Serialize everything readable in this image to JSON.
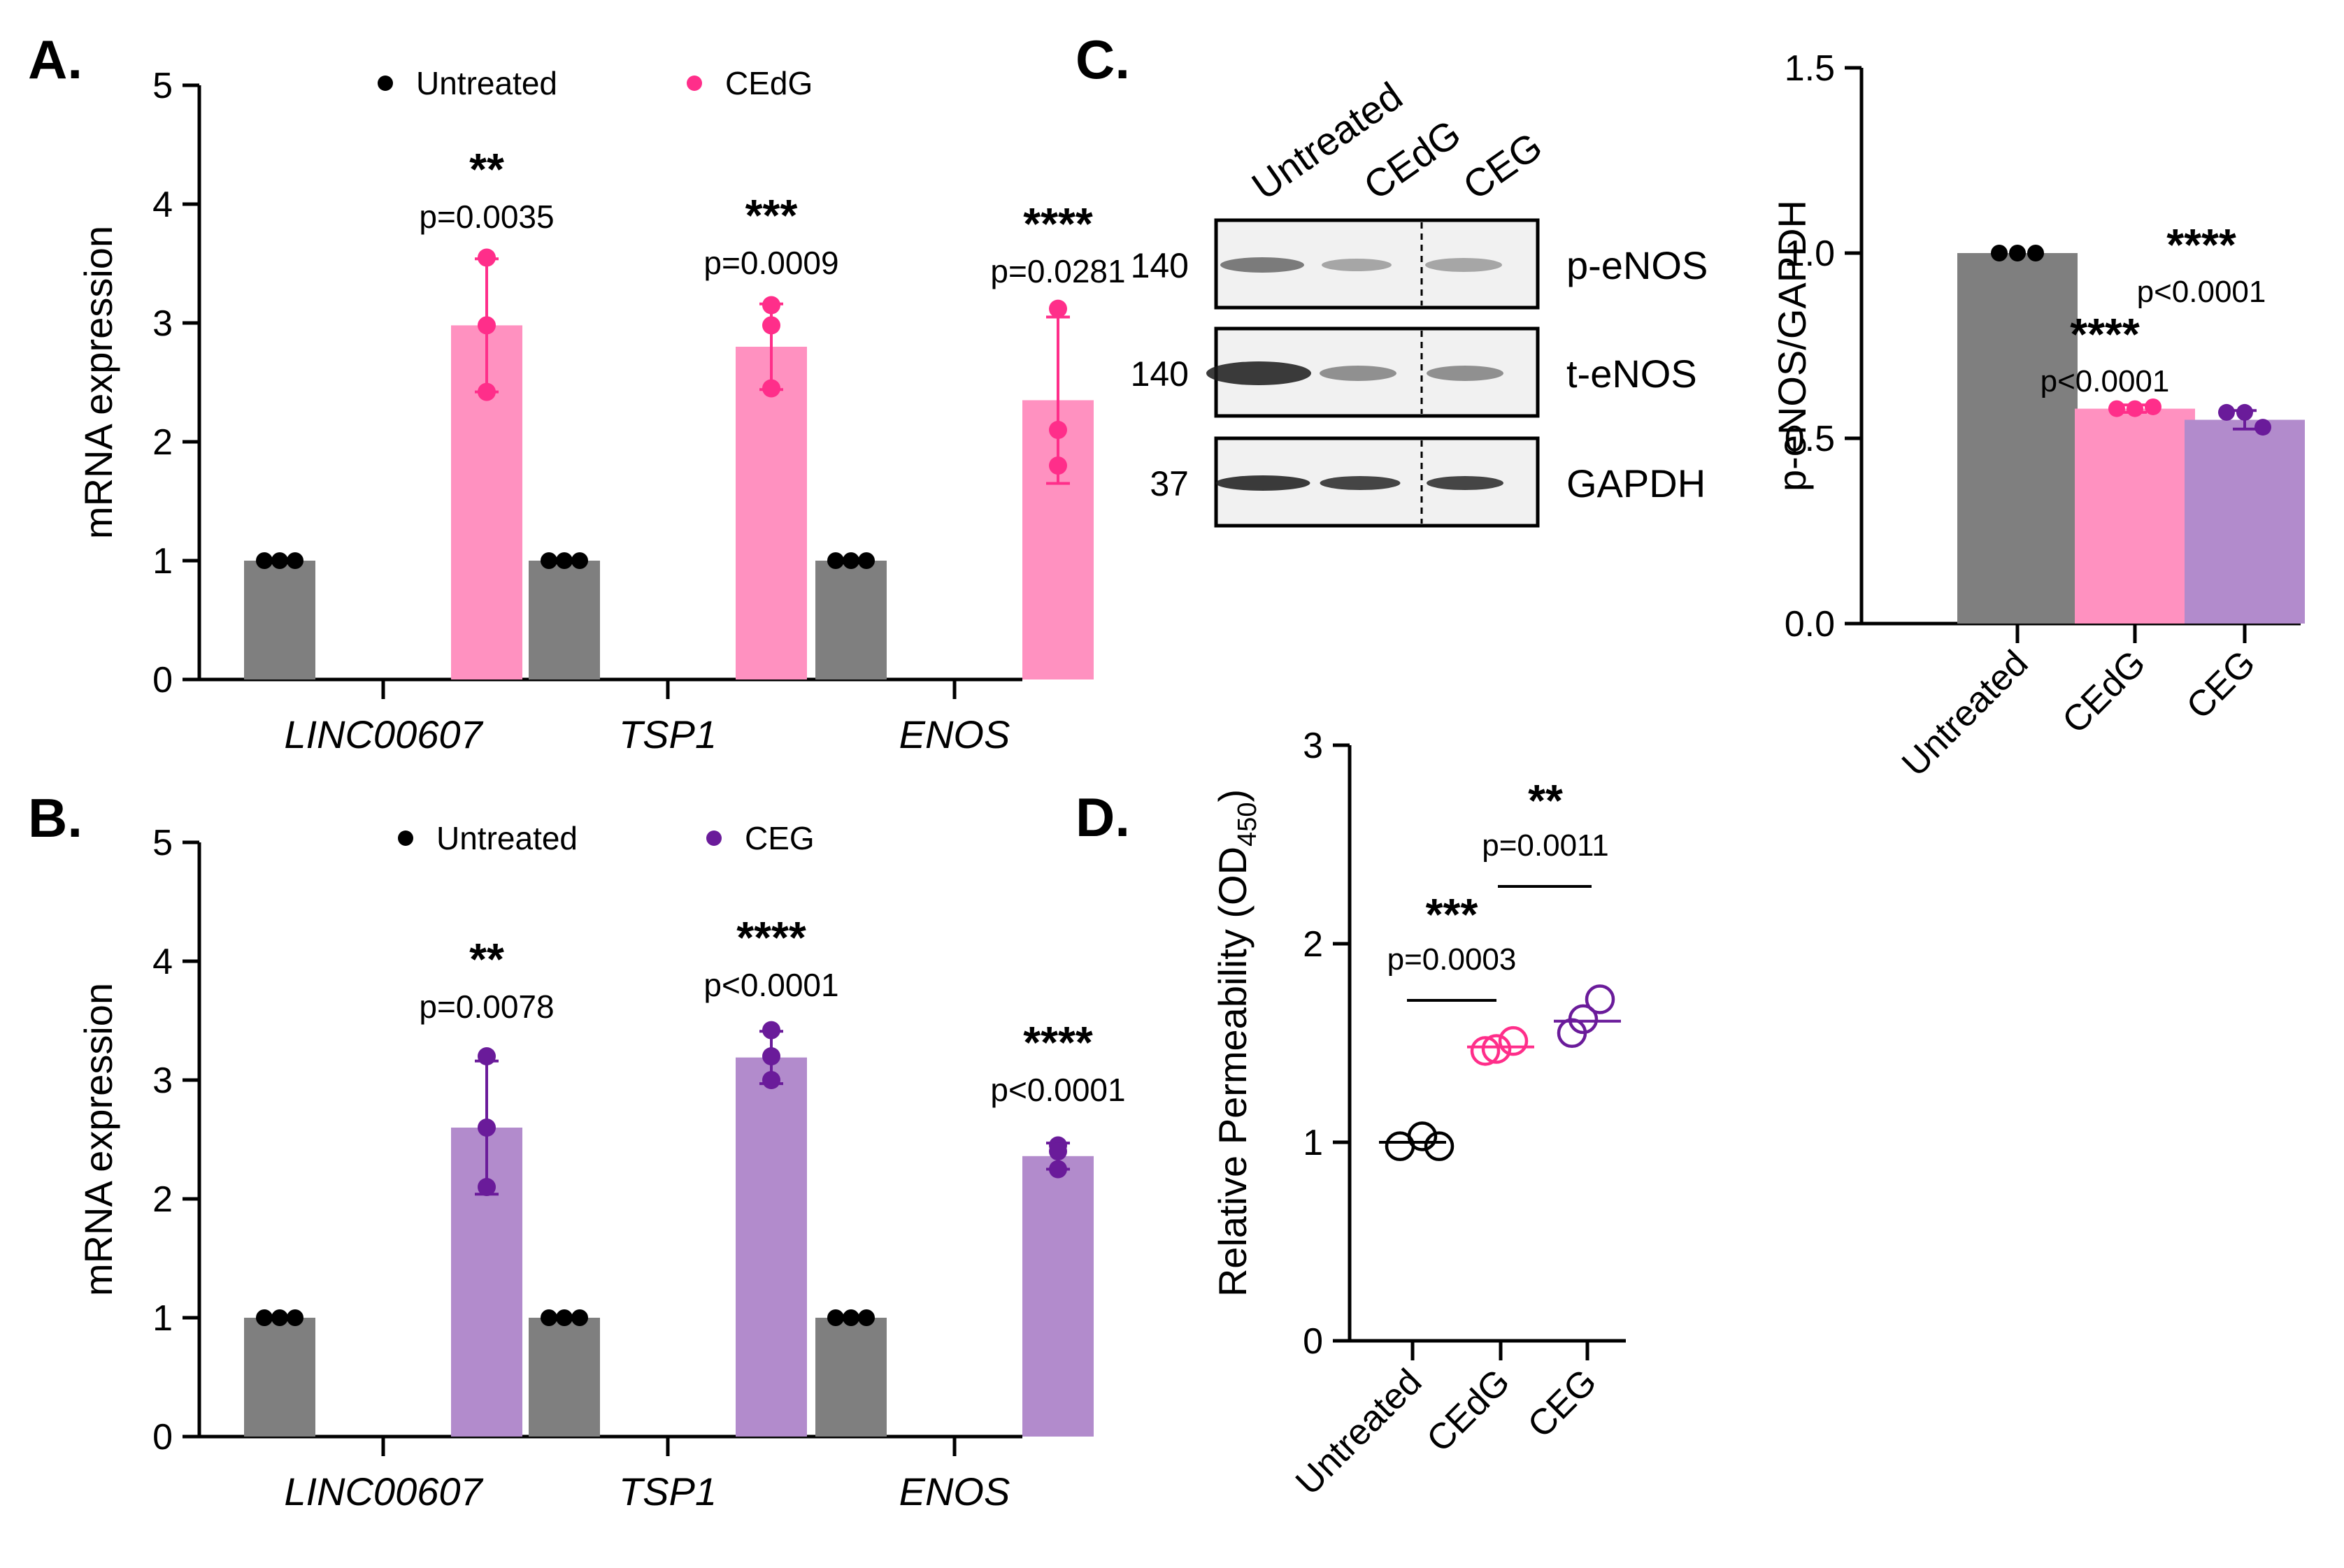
{
  "colors": {
    "untreated": "#7f7f7f",
    "cedg": "#ff91c0",
    "cedg_dot": "#ff2e8a",
    "ceg": "#b28bcc",
    "ceg_dot": "#6a1b9a",
    "black": "#000000"
  },
  "panelA": {
    "letter": "A.",
    "legend": [
      "Untreated",
      "CEdG"
    ],
    "ylabel": "mRNA expression",
    "yticks": [
      "0",
      "1",
      "2",
      "3",
      "4",
      "5"
    ],
    "categories": [
      "LINC00607",
      "TSP1",
      "ENOS"
    ],
    "stars": [
      "**",
      "***",
      "****"
    ],
    "pvals": [
      "p=0.0035",
      "p=0.0009",
      "p=0.0281"
    ]
  },
  "panelB": {
    "letter": "B.",
    "legend": [
      "Untreated",
      "CEG"
    ],
    "ylabel": "mRNA expression",
    "yticks": [
      "0",
      "1",
      "2",
      "3",
      "4",
      "5"
    ],
    "categories": [
      "LINC00607",
      "TSP1",
      "ENOS"
    ],
    "stars": [
      "**",
      "****",
      "****"
    ],
    "pvals": [
      "p=0.0078",
      "p<0.0001",
      "p<0.0001"
    ]
  },
  "panelC": {
    "letter": "C.",
    "lanes": [
      "Untreated",
      "CEdG",
      "CEG"
    ],
    "blots": [
      {
        "mw": "140",
        "label": "p-eNOS"
      },
      {
        "mw": "140",
        "label": "t-eNOS"
      },
      {
        "mw": "37",
        "label": "GAPDH"
      }
    ],
    "ylabel": "p-eNOS/GAPDH",
    "yticks": [
      "0.0",
      "0.5",
      "1.0",
      "1.5"
    ],
    "categories": [
      "Untreated",
      "CEdG",
      "CEG"
    ],
    "stars": [
      "",
      "****",
      "****"
    ],
    "pvals": [
      "",
      "p<0.0001",
      "p<0.0001"
    ]
  },
  "panelD": {
    "letter": "D.",
    "ylabel_main": "Relative Permeability (OD",
    "ylabel_sub": "450",
    "ylabel_end": ")",
    "yticks": [
      "0",
      "1",
      "2",
      "3"
    ],
    "categories": [
      "Untreated",
      "CEdG",
      "CEG"
    ],
    "comparisons": [
      {
        "stars": "***",
        "pval": "p=0.0003"
      },
      {
        "stars": "**",
        "pval": "p=0.0011"
      }
    ]
  },
  "chart_data": [
    {
      "type": "bar",
      "panel": "A",
      "categories": [
        "LINC00607",
        "TSP1",
        "ENOS"
      ],
      "ylabel": "mRNA expression",
      "ylim": [
        0,
        5
      ],
      "series": [
        {
          "name": "Untreated",
          "values": [
            1.0,
            1.0,
            1.0
          ],
          "points": [
            [
              1,
              1,
              1
            ],
            [
              1,
              1,
              1
            ],
            [
              1,
              1,
              1
            ]
          ]
        },
        {
          "name": "CEdG",
          "values": [
            2.98,
            2.8,
            2.35
          ],
          "sd": [
            0.56,
            0.36,
            0.7
          ],
          "points": [
            [
              3.55,
              2.98,
              2.42
            ],
            [
              3.15,
              2.98,
              2.45
            ],
            [
              3.12,
              2.1,
              1.8
            ]
          ]
        }
      ]
    },
    {
      "type": "bar",
      "panel": "B",
      "categories": [
        "LINC00607",
        "TSP1",
        "ENOS"
      ],
      "ylabel": "mRNA expression",
      "ylim": [
        0,
        5
      ],
      "series": [
        {
          "name": "Untreated",
          "values": [
            1.0,
            1.0,
            1.0
          ],
          "points": [
            [
              1,
              1,
              1
            ],
            [
              1,
              1,
              1
            ],
            [
              1,
              1,
              1
            ]
          ]
        },
        {
          "name": "CEG",
          "values": [
            2.6,
            3.19,
            2.36
          ],
          "sd": [
            0.56,
            0.22,
            0.11
          ],
          "points": [
            [
              3.2,
              2.6,
              2.1
            ],
            [
              3.42,
              3.2,
              3.0
            ],
            [
              2.45,
              2.4,
              2.25
            ]
          ]
        }
      ]
    },
    {
      "type": "bar",
      "panel": "C",
      "categories": [
        "Untreated",
        "CEdG",
        "CEG"
      ],
      "ylabel": "p-eNOS/GAPDH",
      "ylim": [
        0,
        1.5
      ],
      "values": [
        1.0,
        0.58,
        0.55
      ],
      "sd": [
        0,
        0.01,
        0.025
      ],
      "points": [
        [
          1.0,
          1.0,
          1.0
        ],
        [
          0.58,
          0.58,
          0.585
        ],
        [
          0.57,
          0.57,
          0.53
        ]
      ]
    },
    {
      "type": "scatter",
      "panel": "D",
      "categories": [
        "Untreated",
        "CEdG",
        "CEG"
      ],
      "ylabel": "Relative Permeability (OD450)",
      "ylim": [
        0,
        3
      ],
      "means": [
        1.0,
        1.48,
        1.61
      ],
      "points": [
        [
          0.98,
          1.03,
          0.98
        ],
        [
          1.46,
          1.51,
          1.47
        ],
        [
          1.55,
          1.72,
          1.62
        ]
      ]
    }
  ]
}
